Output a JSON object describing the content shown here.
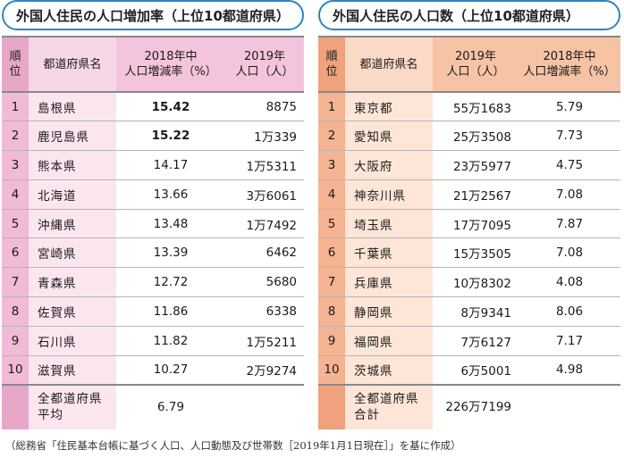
{
  "left": {
    "title": "外国人住民の人口増加率（上位10都道府県）",
    "headers": {
      "rank": "順\n位",
      "pref": "都道府県名",
      "col3": "2018年中\n人口増減率（%）",
      "col4": "2019年\n人口（人）"
    },
    "rows": [
      {
        "rank": "1",
        "pref": "島根県",
        "rate": "15.42",
        "pop": "8875"
      },
      {
        "rank": "2",
        "pref": "鹿児島県",
        "rate": "15.22",
        "pop": "1万339"
      },
      {
        "rank": "3",
        "pref": "熊本県",
        "rate": "14.17",
        "pop": "1万5311"
      },
      {
        "rank": "4",
        "pref": "北海道",
        "rate": "13.66",
        "pop": "3万6061"
      },
      {
        "rank": "5",
        "pref": "沖縄県",
        "rate": "13.48",
        "pop": "1万7492"
      },
      {
        "rank": "6",
        "pref": "宮崎県",
        "rate": "13.39",
        "pop": "6462"
      },
      {
        "rank": "7",
        "pref": "青森県",
        "rate": "12.72",
        "pop": "5680"
      },
      {
        "rank": "8",
        "pref": "佐賀県",
        "rate": "11.86",
        "pop": "6338"
      },
      {
        "rank": "9",
        "pref": "石川県",
        "rate": "11.82",
        "pop": "1万5211"
      },
      {
        "rank": "10",
        "pref": "滋賀県",
        "rate": "10.27",
        "pop": "2万9274"
      }
    ],
    "summary": {
      "label": "全都道府県\n平均",
      "rate": "6.79"
    }
  },
  "right": {
    "title": "外国人住民の人口数（上位10都道府県）",
    "headers": {
      "rank": "順\n位",
      "pref": "都道府県名",
      "col3": "2019年\n人口（人）",
      "col4": "2018年中\n人口増減率（%）"
    },
    "rows": [
      {
        "rank": "1",
        "pref": "東京都",
        "pop": "55万1683",
        "rate": "5.79"
      },
      {
        "rank": "2",
        "pref": "愛知県",
        "pop": "25万3508",
        "rate": "7.73"
      },
      {
        "rank": "3",
        "pref": "大阪府",
        "pop": "23万5977",
        "rate": "4.75"
      },
      {
        "rank": "4",
        "pref": "神奈川県",
        "pop": "21万2567",
        "rate": "7.08"
      },
      {
        "rank": "5",
        "pref": "埼玉県",
        "pop": "17万7095",
        "rate": "7.87"
      },
      {
        "rank": "6",
        "pref": "千葉県",
        "pop": "15万3505",
        "rate": "7.08"
      },
      {
        "rank": "7",
        "pref": "兵庫県",
        "pop": "10万8302",
        "rate": "4.08"
      },
      {
        "rank": "8",
        "pref": "静岡県",
        "pop": "8万9341",
        "rate": "8.06"
      },
      {
        "rank": "9",
        "pref": "福岡県",
        "pop": "7万6127",
        "rate": "7.17"
      },
      {
        "rank": "10",
        "pref": "茨城県",
        "pop": "6万5001",
        "rate": "4.98"
      }
    ],
    "summary": {
      "label": "全都道府県\n合計",
      "pop": "226万7199"
    }
  },
  "source": "（総務省「住民基本台帳に基づく人口、人口動態及び世帯数［2019年1月1日現在］」を基に作成）"
}
